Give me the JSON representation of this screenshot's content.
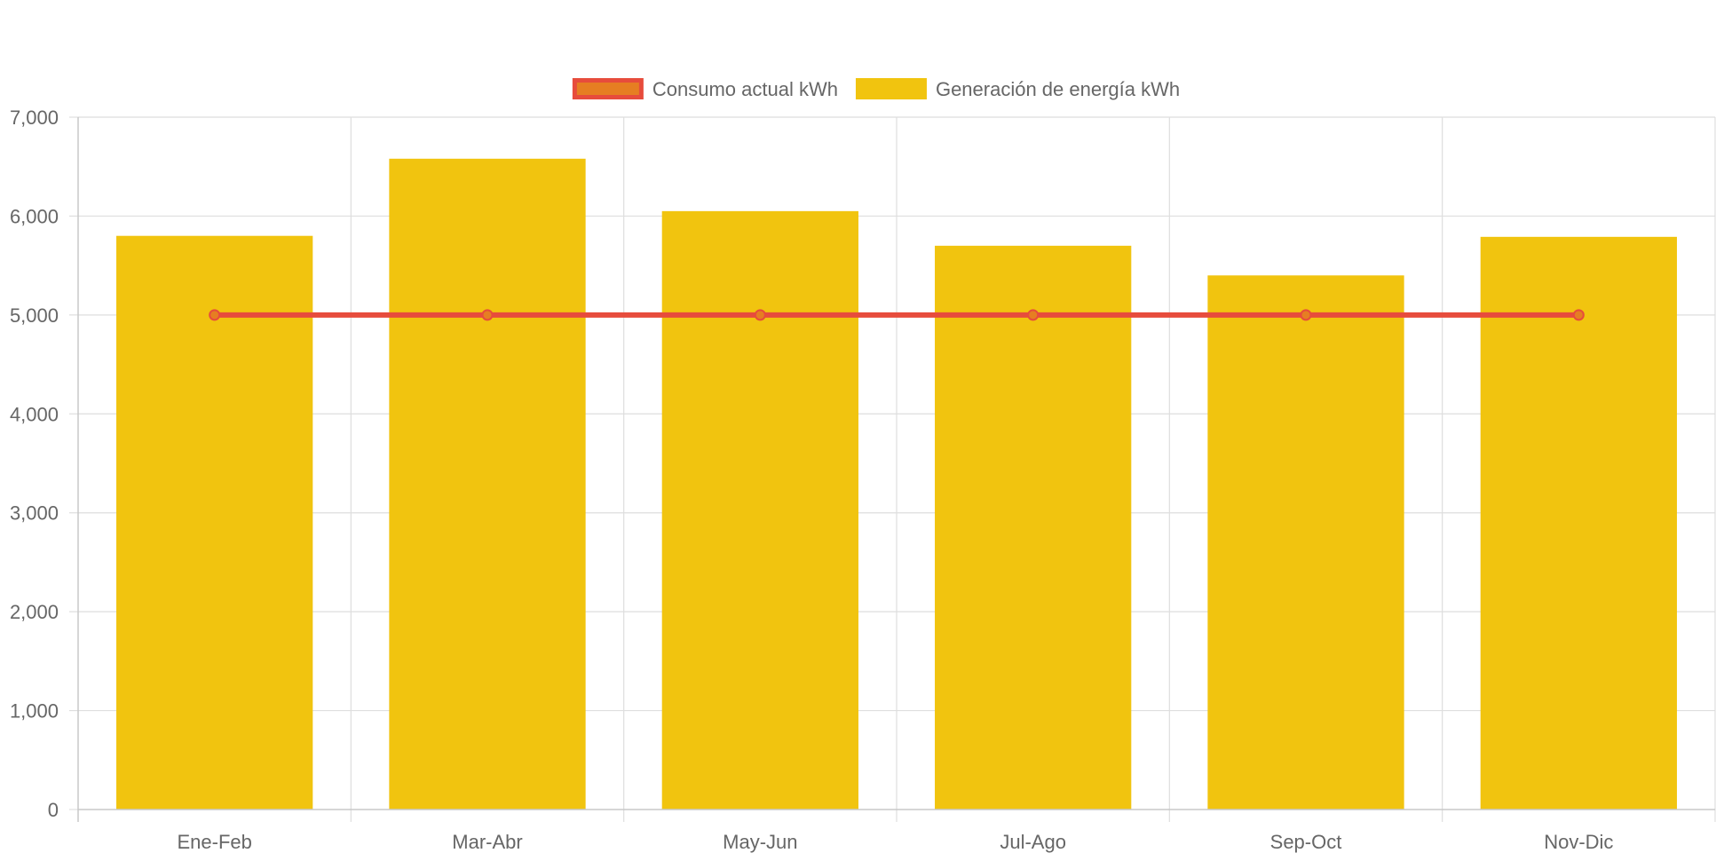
{
  "chart_data": {
    "type": "bar",
    "categories": [
      "Ene-Feb",
      "Mar-Abr",
      "May-Jun",
      "Jul-Ago",
      "Sep-Oct",
      "Nov-Dic"
    ],
    "series": [
      {
        "name": "Consumo actual kWh",
        "type": "line",
        "values": [
          5000,
          5000,
          5000,
          5000,
          5000,
          5000
        ],
        "color": "#e74c3c",
        "fill_color": "#e67e22"
      },
      {
        "name": "Generación de energía kWh",
        "type": "bar",
        "values": [
          5800,
          6580,
          6050,
          5700,
          5400,
          5790
        ],
        "color": "#f1c40f"
      }
    ],
    "ylim": [
      0,
      7000
    ],
    "yticks": [
      0,
      1000,
      2000,
      3000,
      4000,
      5000,
      6000,
      7000
    ],
    "ytick_labels": [
      "0",
      "1,000",
      "2,000",
      "3,000",
      "4,000",
      "5,000",
      "6,000",
      "7,000"
    ],
    "grid": true,
    "legend_position": "top-center"
  }
}
